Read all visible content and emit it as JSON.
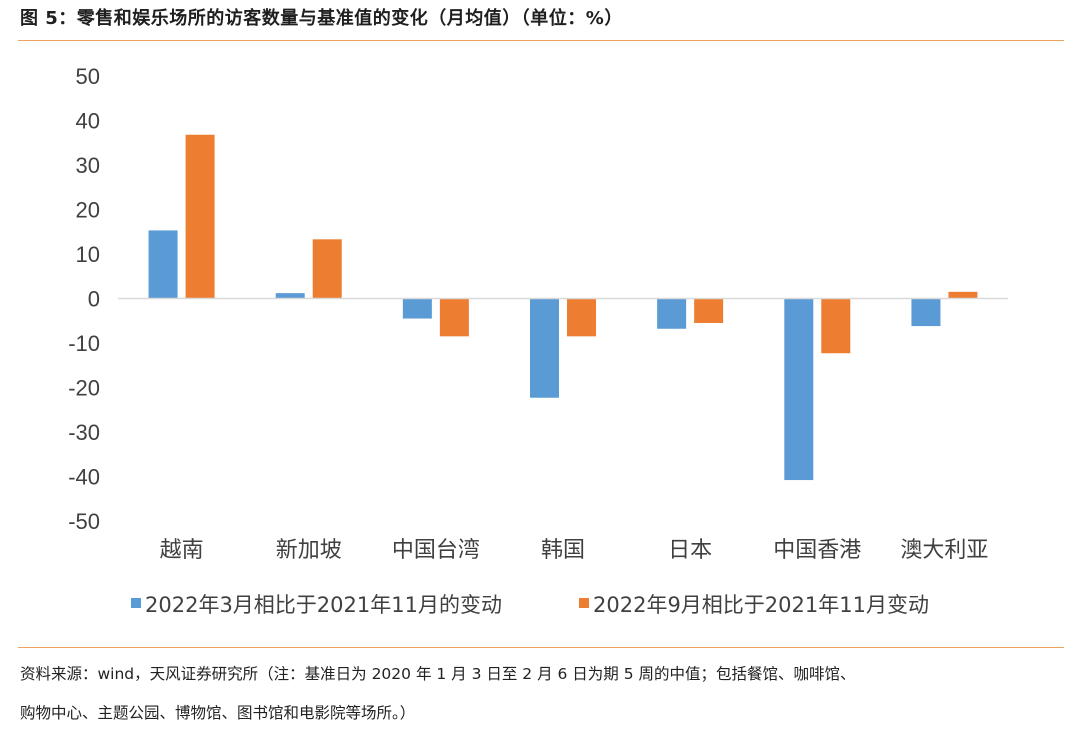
{
  "title": "图 5：零售和娱乐场所的访客数量与基准值的变化（月均值）（单位：%）",
  "source": {
    "line1": "资料来源：wind，天风证券研究所（注：基准日为 2020 年 1 月 3 日至 2 月 6 日为期 5 周的中值；包括餐馆、咖啡馆、",
    "line2": "购物中心、主题公园、博物馆、图书馆和电影院等场所。）"
  },
  "colors": {
    "series1": "#5b9bd5",
    "series2": "#ed7d31",
    "rule": "#f0a35e",
    "axis": "#d9d9d9",
    "text": "#404040"
  },
  "chart_data": {
    "type": "bar",
    "title": "",
    "xlabel": "",
    "ylabel": "",
    "ylim": [
      -50,
      50
    ],
    "yticks": [
      "50",
      "40",
      "30",
      "20",
      "10",
      "0",
      "-10",
      "-20",
      "-30",
      "-40",
      "-50"
    ],
    "ytick_values": [
      50,
      40,
      30,
      20,
      10,
      0,
      -10,
      -20,
      -30,
      -40,
      -50
    ],
    "grid": false,
    "legend_position": "bottom",
    "categories": [
      "越南",
      "新加坡",
      "中国台湾",
      "韩国",
      "日本",
      "中国香港",
      "澳大利亚"
    ],
    "series": [
      {
        "name": "2022年3月相比于2021年11月的变动",
        "values": [
          15.3,
          1.2,
          -4.5,
          -22.3,
          -6.8,
          -40.8,
          -6.2
        ]
      },
      {
        "name": "2022年9月相比于2021年11月变动",
        "values": [
          36.8,
          13.3,
          -8.5,
          -8.5,
          -5.5,
          -12.3,
          1.5
        ]
      }
    ]
  }
}
